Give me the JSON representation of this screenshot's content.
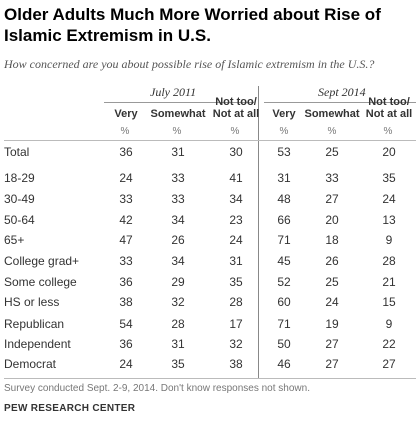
{
  "title": "Older Adults Much More Worried about Rise of Islamic Extremism in U.S.",
  "subtitle": "How concerned are you about possible rise of Islamic extremism in the U.S.?",
  "periods": [
    "July 2011",
    "Sept 2014"
  ],
  "columns": [
    "Very",
    "Somewhat",
    "Not too/ Not at all"
  ],
  "unit": "%",
  "note": "Survey conducted Sept. 2-9, 2014. Don't know responses not shown.",
  "source": "PEW RESEARCH CENTER",
  "chart_data": {
    "type": "table",
    "title": "Older Adults Much More Worried about Rise of Islamic Extremism in U.S.",
    "subtitle": "How concerned are you about possible rise of Islamic extremism in the U.S.?",
    "column_groups": [
      "July 2011",
      "Sept 2014"
    ],
    "columns": [
      "Very",
      "Somewhat",
      "Not too/ Not at all"
    ],
    "unit": "%",
    "rows": [
      {
        "label": "Total",
        "values": [
          36,
          31,
          30,
          53,
          25,
          20
        ]
      },
      {
        "label": "18-29",
        "values": [
          24,
          33,
          41,
          31,
          33,
          35
        ]
      },
      {
        "label": "30-49",
        "values": [
          33,
          33,
          34,
          48,
          27,
          24
        ]
      },
      {
        "label": "50-64",
        "values": [
          42,
          34,
          23,
          66,
          20,
          13
        ]
      },
      {
        "label": "65+",
        "values": [
          47,
          26,
          24,
          71,
          18,
          9
        ]
      },
      {
        "label": "College grad+",
        "values": [
          33,
          34,
          31,
          45,
          26,
          28
        ]
      },
      {
        "label": "Some college",
        "values": [
          36,
          29,
          35,
          52,
          25,
          21
        ]
      },
      {
        "label": "HS or less",
        "values": [
          38,
          32,
          28,
          60,
          24,
          15
        ]
      },
      {
        "label": "Republican",
        "values": [
          54,
          28,
          17,
          71,
          19,
          9
        ]
      },
      {
        "label": "Independent",
        "values": [
          36,
          31,
          32,
          50,
          27,
          22
        ]
      },
      {
        "label": "Democrat",
        "values": [
          24,
          35,
          38,
          46,
          27,
          27
        ]
      }
    ]
  }
}
